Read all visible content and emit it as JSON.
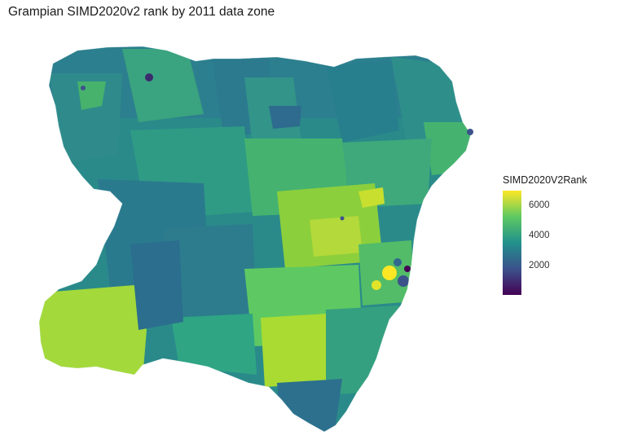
{
  "title": "Grampian SIMD2020v2 rank by 2011 data zone",
  "legend": {
    "title": "SIMD2020V2Rank",
    "ticks": [
      "6000",
      "4000",
      "2000"
    ],
    "tick_values": [
      6000,
      4000,
      2000
    ],
    "range": [
      1,
      6976
    ]
  },
  "colors": {
    "low": "#440154",
    "mid_low": "#3b528b",
    "mid": "#21918c",
    "mid_high": "#5ec962",
    "high": "#fde725"
  }
}
